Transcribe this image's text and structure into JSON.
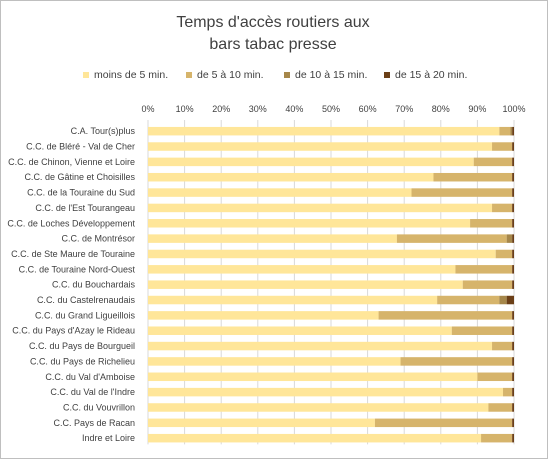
{
  "chart_data": {
    "type": "bar",
    "orientation": "horizontal",
    "stacked": "percent",
    "title_lines": [
      "Temps d'accès routiers aux",
      "bars tabac presse"
    ],
    "legend_position": "top",
    "grid": true,
    "xlim": [
      0,
      100
    ],
    "x_ticks": [
      "0%",
      "10%",
      "20%",
      "30%",
      "40%",
      "50%",
      "60%",
      "70%",
      "80%",
      "90%",
      "100%"
    ],
    "categories": [
      "C.A. Tour(s)plus",
      "C.C. de Bléré - Val de Cher",
      "C.C. de Chinon, Vienne et Loire",
      "C.C. de Gâtine et Choisilles",
      "C.C. de la Touraine du Sud",
      "C.C. de l'Est Tourangeau",
      "C.C. de Loches Développement",
      "C.C. de Montrésor",
      "C.C. de Ste Maure de Touraine",
      "C.C. de Touraine Nord-Ouest",
      "C.C. du Bouchardais",
      "C.C. du Castelrenaudais",
      "C.C. du Grand Ligueillois",
      "C.C. du Pays d'Azay le Rideau",
      "C.C. du Pays de Bourgueil",
      "C.C. du Pays de Richelieu",
      "C.C. du Val d'Amboise",
      "C.C. du Val de l'Indre",
      "C.C. du Vouvrillon",
      "C.C. Pays de Racan",
      "Indre et Loire"
    ],
    "series": [
      {
        "name": "moins de 5 min.",
        "color": "#FFE699",
        "values": [
          96,
          94,
          89,
          78,
          72,
          94,
          88,
          68,
          95,
          84,
          86,
          79,
          63,
          83,
          94,
          69,
          90,
          97,
          93,
          62,
          91
        ]
      },
      {
        "name": "de 5 à 10 min.",
        "color": "#D6B46B",
        "values": [
          3,
          5.5,
          10.5,
          21.5,
          27.5,
          5.5,
          11.5,
          30,
          4.5,
          15.5,
          13.5,
          17,
          36.5,
          16.5,
          5.5,
          30.5,
          9.5,
          2.5,
          6.5,
          37.5,
          8.5
        ]
      },
      {
        "name": "de 10 à 15 min.",
        "color": "#A6874A",
        "values": [
          0.5,
          0,
          0,
          0,
          0,
          0,
          0,
          1.5,
          0,
          0,
          0,
          2,
          0,
          0,
          0,
          0,
          0,
          0,
          0,
          0,
          0
        ]
      },
      {
        "name": "de 15 à 20 min.",
        "color": "#6B3F17",
        "values": [
          0.5,
          0.5,
          0.5,
          0.5,
          0.5,
          0.5,
          0.5,
          0.5,
          0.5,
          0.5,
          0.5,
          2,
          0.5,
          0.5,
          0.5,
          0.5,
          0.5,
          0.5,
          0.5,
          0.5,
          0.5
        ]
      }
    ]
  },
  "colors": {
    "border": "#bfbfbf",
    "gridline": "#d9d9d9",
    "text": "#404040"
  }
}
